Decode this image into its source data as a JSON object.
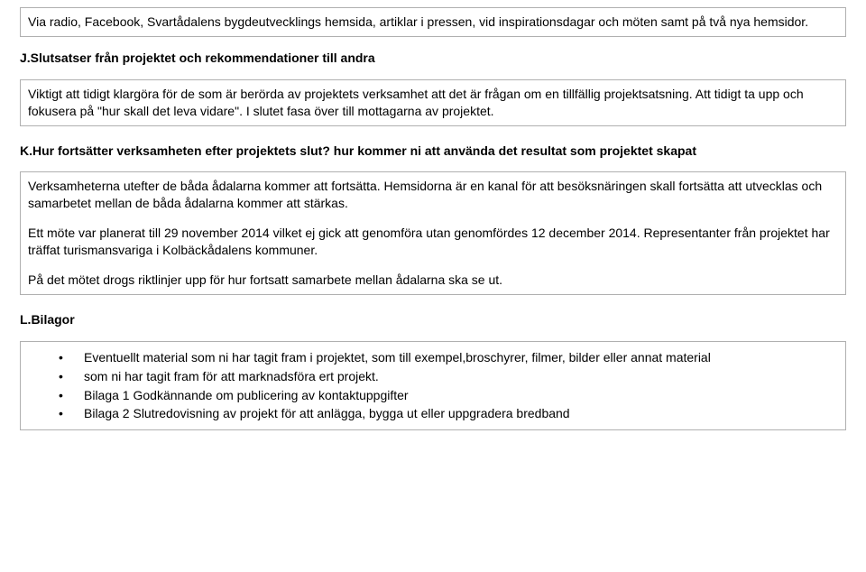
{
  "box1": {
    "text": "Via radio, Facebook, Svartådalens bygdeutvecklings hemsida, artiklar i pressen, vid inspirationsdagar och möten samt på två nya hemsidor."
  },
  "headingJ": "J.Slutsatser från projektet och rekommendationer till andra",
  "box2": {
    "text": "Viktigt att tidigt klargöra för de som är berörda av projektets verksamhet att det är frågan om en tillfällig projektsatsning. Att tidigt ta upp och fokusera på \"hur skall det leva vidare\". I slutet fasa över till mottagarna av projektet."
  },
  "questionK": {
    "bold": "K.Hur fortsätter verksamheten efter projektets slut?",
    "tail": " hur kommer ni att använda det resultat som projektet skapat"
  },
  "box3": {
    "p1": "Verksamheterna utefter de båda ådalarna kommer att fortsätta. Hemsidorna är en kanal för att besöksnäringen skall fortsätta att utvecklas och samarbetet mellan de båda ådalarna kommer att stärkas.",
    "p2": "Ett möte var planerat till 29 november 2014 vilket ej gick att genomföra utan genomfördes 12 december 2014. Representanter från projektet har träffat turismansvariga i Kolbäckådalens kommuner.",
    "p3": "På det mötet drogs riktlinjer upp för hur fortsatt samarbete mellan ådalarna ska se ut."
  },
  "headingL": "L.Bilagor",
  "box4": {
    "items": [
      "Eventuellt material som ni har tagit fram i projektet, som till exempel,broschyrer, filmer, bilder eller annat material",
      "som ni har tagit fram för att marknadsföra ert projekt.",
      "Bilaga 1 Godkännande om publicering av kontaktuppgifter",
      "Bilaga 2 Slutredovisning av projekt för att anlägga, bygga ut eller uppgradera bredband"
    ]
  }
}
